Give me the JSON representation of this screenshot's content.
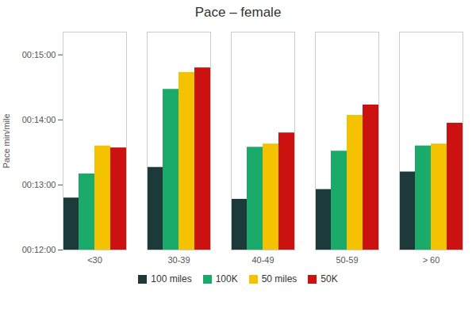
{
  "chart_data": {
    "type": "bar",
    "title": "Pace – female",
    "ylabel": "Pace min/mile",
    "categories": [
      "<30",
      "30-39",
      "40-49",
      "50-59",
      "> 60"
    ],
    "series": [
      {
        "name": "100 miles",
        "color": "#1c3a3a",
        "values": [
          12.8,
          13.27,
          12.78,
          12.93,
          13.2
        ]
      },
      {
        "name": "100K",
        "color": "#1aaa6a",
        "values": [
          13.17,
          14.47,
          13.58,
          13.52,
          13.6
        ]
      },
      {
        "name": "50 miles",
        "color": "#f5c200",
        "values": [
          13.6,
          14.73,
          13.63,
          14.07,
          13.63
        ]
      },
      {
        "name": "50K",
        "color": "#cc1111",
        "values": [
          13.57,
          14.8,
          13.8,
          14.23,
          13.95
        ]
      }
    ],
    "ylim": [
      12.0,
      15.35
    ],
    "yticks": [
      {
        "value": 12.0,
        "label": "00:12:00"
      },
      {
        "value": 13.0,
        "label": "00:13:00"
      },
      {
        "value": 14.0,
        "label": "00:14:00"
      },
      {
        "value": 15.0,
        "label": "00:15:00"
      }
    ],
    "grid": false,
    "legend": "bottom"
  }
}
